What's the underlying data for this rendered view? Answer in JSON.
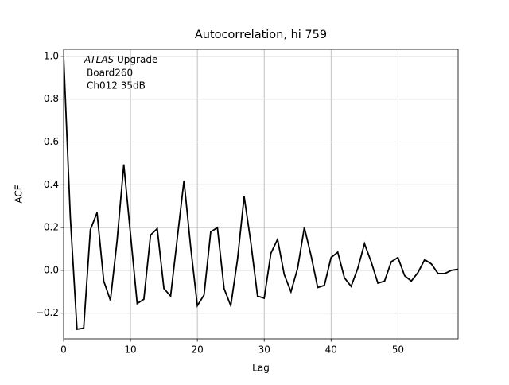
{
  "chart_data": {
    "type": "line",
    "title": "Autocorrelation, hi 759",
    "xlabel": "Lag",
    "ylabel": "ACF",
    "annotation": {
      "italic": "ATLAS",
      "text": "Upgrade",
      "lines": [
        "Board260",
        "Ch012 35dB"
      ]
    },
    "x": [
      0,
      1,
      2,
      3,
      4,
      5,
      6,
      7,
      8,
      9,
      10,
      11,
      12,
      13,
      14,
      15,
      16,
      17,
      18,
      19,
      20,
      21,
      22,
      23,
      24,
      25,
      26,
      27,
      28,
      29,
      30,
      31,
      32,
      33,
      34,
      35,
      36,
      37,
      38,
      39,
      40,
      41,
      42,
      43,
      44,
      45,
      46,
      47,
      48,
      49,
      50,
      51,
      52,
      53,
      54,
      55,
      56,
      57,
      58,
      59
    ],
    "series": [
      {
        "name": "ACF",
        "color": "#000000",
        "values": [
          1.0,
          0.25,
          -0.275,
          -0.27,
          0.19,
          0.27,
          -0.05,
          -0.14,
          0.14,
          0.495,
          0.17,
          -0.155,
          -0.135,
          0.165,
          0.195,
          -0.085,
          -0.12,
          0.15,
          0.42,
          0.11,
          -0.165,
          -0.115,
          0.18,
          0.2,
          -0.085,
          -0.165,
          0.05,
          0.345,
          0.13,
          -0.12,
          -0.13,
          0.08,
          0.145,
          -0.02,
          -0.1,
          0.01,
          0.2,
          0.07,
          -0.08,
          -0.07,
          0.06,
          0.085,
          -0.035,
          -0.075,
          0.01,
          0.125,
          0.04,
          -0.06,
          -0.05,
          0.04,
          0.06,
          -0.025,
          -0.05,
          -0.01,
          0.05,
          0.03,
          -0.015,
          -0.015,
          0.0,
          0.005
        ]
      }
    ],
    "xlim": [
      0,
      59
    ],
    "xticks": [
      0,
      10,
      20,
      30,
      40,
      50
    ],
    "ylim": [
      -0.32,
      1.033
    ],
    "yticks": [
      {
        "value": -0.2,
        "label": "−0.2"
      },
      {
        "value": 0,
        "label": "0.0"
      },
      0.2,
      0.4,
      0.6,
      0.8,
      {
        "value": 1,
        "label": "1.0"
      }
    ],
    "grid": true
  }
}
